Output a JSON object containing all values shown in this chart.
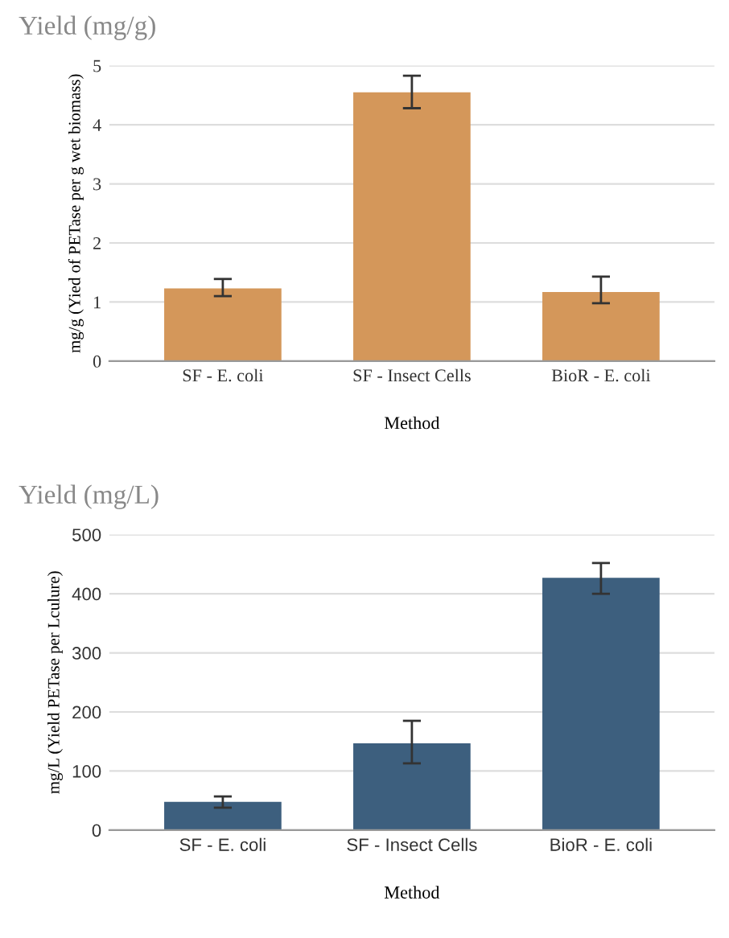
{
  "chart_data": [
    {
      "type": "bar",
      "title": "Yield (mg/g)",
      "xlabel": "Method",
      "ylabel": "mg/g (Yied of PETase per g wet biomass)",
      "categories": [
        "SF - E. coli",
        "SF - Insect Cells",
        "BioR - E. coli"
      ],
      "values": [
        1.23,
        4.55,
        1.17
      ],
      "errors": [
        [
          1.1,
          1.39
        ],
        [
          4.28,
          4.83
        ],
        [
          0.98,
          1.43
        ]
      ],
      "color": "#d4975a",
      "ylim": [
        0,
        5
      ],
      "yticks": [
        0,
        1,
        2,
        3,
        4,
        5
      ],
      "grid": "y"
    },
    {
      "type": "bar",
      "title": "Yield (mg/L)",
      "xlabel": "Method",
      "ylabel": "mg/L (Yield PETase per Lculure)",
      "categories": [
        "SF - E. coli",
        "SF - Insect Cells",
        "BioR - E. coli"
      ],
      "values": [
        48,
        147,
        427
      ],
      "errors": [
        [
          38,
          57
        ],
        [
          113,
          185
        ],
        [
          400,
          452
        ]
      ],
      "color": "#3d5f7e",
      "ylim": [
        0,
        500
      ],
      "yticks": [
        0,
        100,
        200,
        300,
        400,
        500
      ],
      "grid": "y"
    }
  ]
}
